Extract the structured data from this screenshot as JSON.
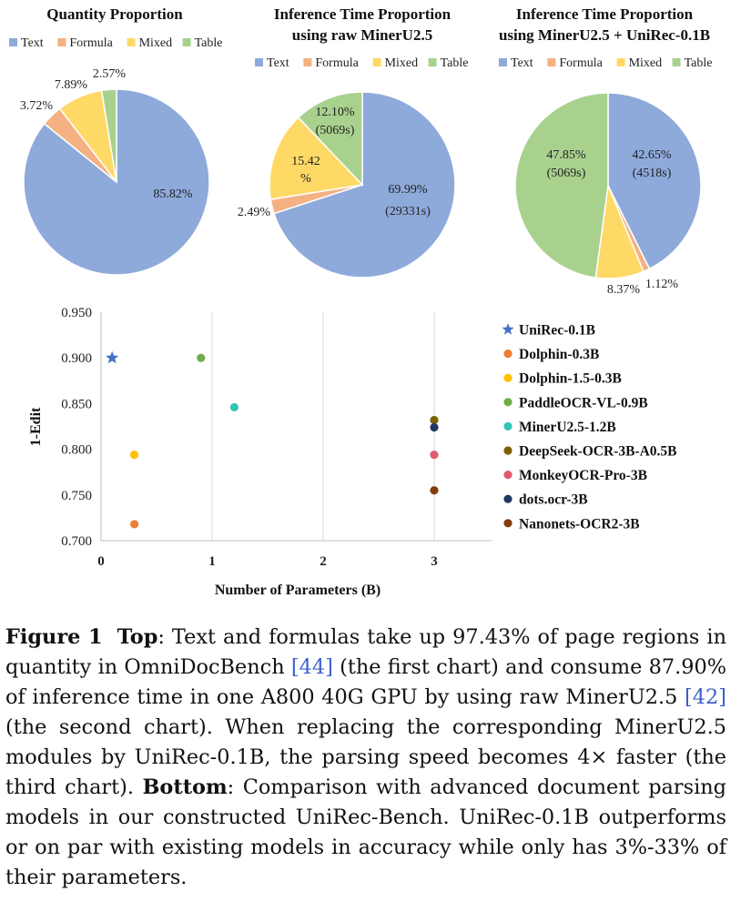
{
  "colors": {
    "Text": "#8eaadb",
    "Formula": "#f4b183",
    "Mixed": "#ffd966",
    "Table": "#a9d18e",
    "label": "#222222",
    "axis": "#bfbfbf",
    "ref": "#3a5fcd"
  },
  "chart_data": [
    {
      "type": "pie",
      "title": "Quantity Proportion",
      "legend": [
        "Text",
        "Formula",
        "Mixed",
        "Table"
      ],
      "legend_placement": "top",
      "slices": [
        {
          "name": "Text",
          "value": 85.82,
          "label": "85.82%"
        },
        {
          "name": "Formula",
          "value": 3.72,
          "label": "3.72%"
        },
        {
          "name": "Mixed",
          "value": 7.89,
          "label": "7.89%"
        },
        {
          "name": "Table",
          "value": 2.57,
          "label": "2.57%"
        }
      ]
    },
    {
      "type": "pie",
      "title": "Inference Time Proportion",
      "subtitle": "using raw MinerU2.5",
      "legend": [
        "Text",
        "Formula",
        "Mixed",
        "Table"
      ],
      "legend_placement": "top",
      "slices": [
        {
          "name": "Text",
          "value": 69.99,
          "label": "69.99%",
          "label2": "(29331s)"
        },
        {
          "name": "Formula",
          "value": 2.49,
          "label": "2.49%"
        },
        {
          "name": "Mixed",
          "value": 15.42,
          "label": "15.42",
          "label2": "%"
        },
        {
          "name": "Table",
          "value": 12.1,
          "label": "12.10%",
          "label2": "(5069s)"
        }
      ]
    },
    {
      "type": "pie",
      "title": "Inference Time Proportion",
      "subtitle": "using MinerU2.5 + UniRec-0.1B",
      "legend": [
        "Text",
        "Formula",
        "Mixed",
        "Table"
      ],
      "legend_placement": "top",
      "slices": [
        {
          "name": "Text",
          "value": 42.65,
          "label": "42.65%",
          "label2": "(4518s)"
        },
        {
          "name": "Formula",
          "value": 1.12,
          "label": "1.12%"
        },
        {
          "name": "Mixed",
          "value": 8.37,
          "label": "8.37%"
        },
        {
          "name": "Table",
          "value": 47.85,
          "label": "47.85%",
          "label2": "(5069s)"
        }
      ]
    },
    {
      "type": "scatter",
      "xlabel": "Number of Parameters (B)",
      "ylabel": "1-Edit",
      "xlim": [
        0,
        3.5
      ],
      "ylim": [
        0.7,
        0.95
      ],
      "xticks": [
        0,
        1,
        2,
        3
      ],
      "yticks": [
        0.7,
        0.75,
        0.8,
        0.85,
        0.9,
        0.95
      ],
      "xtick_labels": [
        "0",
        "1",
        "2",
        "3"
      ],
      "ytick_labels": [
        "0.700",
        "0.750",
        "0.800",
        "0.850",
        "0.900",
        "0.950"
      ],
      "legend_placement": "right",
      "grid": "vertical",
      "series": [
        {
          "name": "UniRec-0.1B",
          "x": 0.1,
          "y": 0.9,
          "color": "#4472c4",
          "marker": "star"
        },
        {
          "name": "Dolphin-0.3B",
          "x": 0.3,
          "y": 0.718,
          "color": "#ed7d31",
          "marker": "circle"
        },
        {
          "name": "Dolphin-1.5-0.3B",
          "x": 0.3,
          "y": 0.794,
          "color": "#ffc000",
          "marker": "circle"
        },
        {
          "name": "PaddleOCR-VL-0.9B",
          "x": 0.9,
          "y": 0.9,
          "color": "#70ad47",
          "marker": "circle"
        },
        {
          "name": "MinerU2.5-1.2B",
          "x": 1.2,
          "y": 0.846,
          "color": "#33c3b5",
          "marker": "circle"
        },
        {
          "name": "DeepSeek-OCR-3B-A0.5B",
          "x": 3.0,
          "y": 0.832,
          "color": "#7f6000",
          "marker": "circle"
        },
        {
          "name": "MonkeyOCR-Pro-3B",
          "x": 3.0,
          "y": 0.794,
          "color": "#e05a6e",
          "marker": "circle"
        },
        {
          "name": "dots.ocr-3B",
          "x": 3.0,
          "y": 0.824,
          "color": "#203864",
          "marker": "circle"
        },
        {
          "name": "Nanonets-OCR2-3B",
          "x": 3.0,
          "y": 0.755,
          "color": "#843c0c",
          "marker": "circle"
        }
      ]
    }
  ],
  "caption": {
    "label": "Figure 1",
    "top_head": "Top",
    "t1": ": Text and formulas take up 97.43% of page regions in quantity in OmniDocBench ",
    "ref1": "[44]",
    "t2": " (the first chart) and consume 87.90% of inference time in one A800 40G GPU by using raw MinerU2.5 ",
    "ref2": "[42]",
    "t3": " (the second chart). When replacing the corresponding MinerU2.5 modules by UniRec-0.1B, the parsing speed becomes 4× faster (the third chart). ",
    "bottom_head": "Bottom",
    "t4": ": Comparison with advanced document parsing models in our constructed UniRec-Bench. UniRec-0.1B outperforms or on par with existing models in accuracy while only has 3%-33% of their parameters."
  }
}
